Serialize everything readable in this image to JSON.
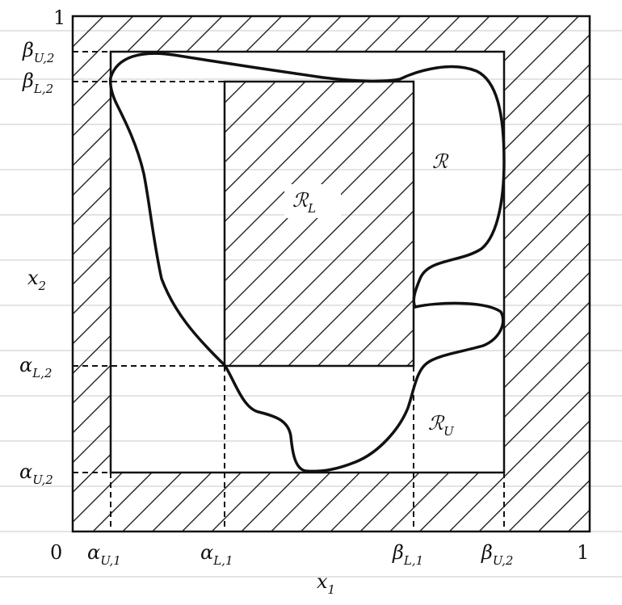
{
  "labels": {
    "y_top_one": "1",
    "beta_U2": {
      "base": "β",
      "sub": "U,2"
    },
    "beta_L2": {
      "base": "β",
      "sub": "L,2"
    },
    "x2": {
      "base": "x",
      "sub": "2"
    },
    "alpha_L2": {
      "base": "α",
      "sub": "L,2"
    },
    "alpha_U2": {
      "base": "α",
      "sub": "U,2"
    },
    "origin": "0",
    "alpha_U1": {
      "base": "α",
      "sub": "U,1"
    },
    "alpha_L1": {
      "base": "α",
      "sub": "L,1"
    },
    "beta_L1": {
      "base": "β",
      "sub": "L,1"
    },
    "beta_U2_x": {
      "base": "β",
      "sub": "U,2"
    },
    "x_right_one": "1",
    "x1": {
      "base": "x",
      "sub": "1"
    }
  },
  "regions": {
    "R": {
      "base": "ℛ",
      "sub": ""
    },
    "RL": {
      "base": "ℛ",
      "sub": "L"
    },
    "RU": {
      "base": "ℛ",
      "sub": "U"
    }
  }
}
